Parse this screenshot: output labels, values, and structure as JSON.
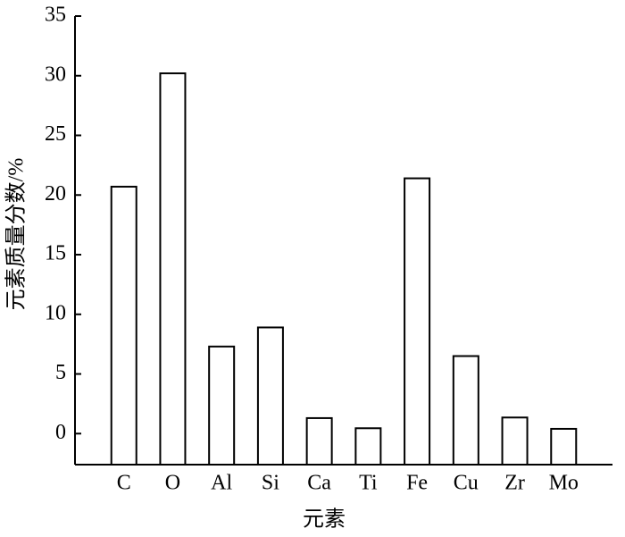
{
  "chart_data": {
    "type": "bar",
    "x_label": "元素",
    "y_label": "元素质量分数/%",
    "categories": [
      "C",
      "O",
      "Al",
      "Si",
      "Ca",
      "Ti",
      "Fe",
      "Cu",
      "Zr",
      "Mo"
    ],
    "values": [
      20.7,
      30.2,
      7.3,
      8.9,
      1.3,
      0.45,
      21.4,
      6.5,
      1.35,
      0.4
    ],
    "color": "#ffffff",
    "ylim": [
      -2.6,
      35
    ],
    "yticks": [
      0,
      5,
      10,
      15,
      20,
      25,
      30,
      35
    ],
    "grid": false
  }
}
